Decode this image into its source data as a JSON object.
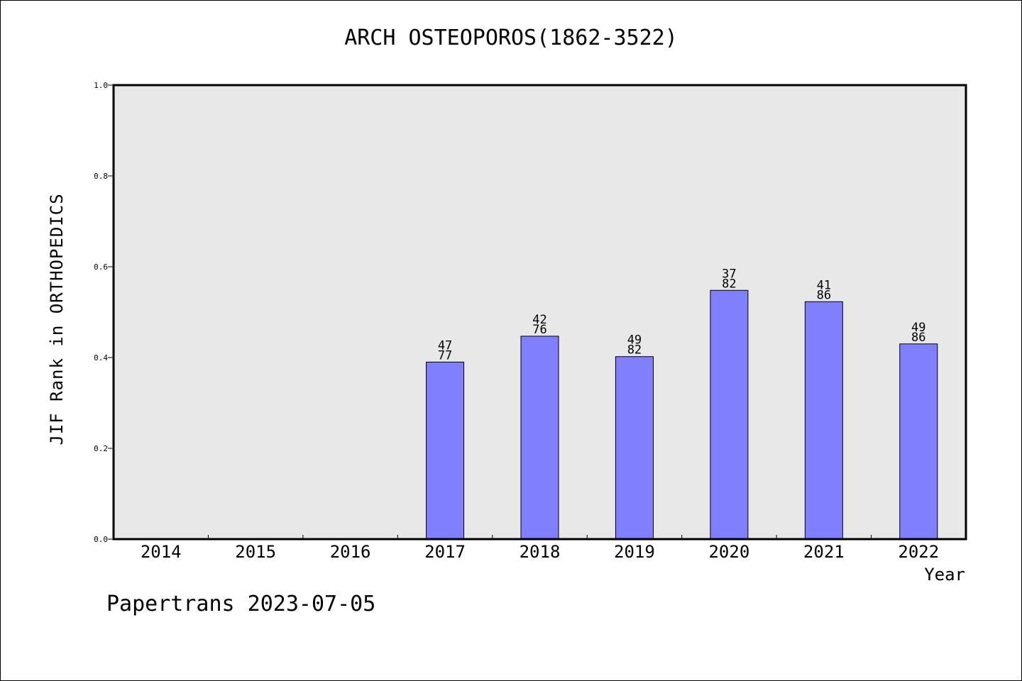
{
  "chart_data": {
    "type": "bar",
    "title": "ARCH OSTEOPOROS(1862-3522)",
    "xlabel": "Year",
    "ylabel": "JIF Rank in ORTHOPEDICS",
    "categories": [
      "2014",
      "2015",
      "2016",
      "2017",
      "2018",
      "2019",
      "2020",
      "2021",
      "2022"
    ],
    "values": [
      null,
      null,
      null,
      0.39,
      0.447,
      0.402,
      0.548,
      0.523,
      0.43
    ],
    "bar_labels": [
      null,
      null,
      null,
      {
        "rank": "47",
        "total": "77"
      },
      {
        "rank": "42",
        "total": "76"
      },
      {
        "rank": "49",
        "total": "82"
      },
      {
        "rank": "37",
        "total": "82"
      },
      {
        "rank": "41",
        "total": "86"
      },
      {
        "rank": "49",
        "total": "86"
      }
    ],
    "ylim": [
      0,
      1.0
    ],
    "yticks": [
      "0.0",
      "0.2",
      "0.4",
      "0.6",
      "0.8",
      "1.0"
    ],
    "grid": false,
    "colors": {
      "bar": "#8080ff",
      "plot_background": "#e8e8e8"
    }
  },
  "footer": "Papertrans 2023-07-05"
}
